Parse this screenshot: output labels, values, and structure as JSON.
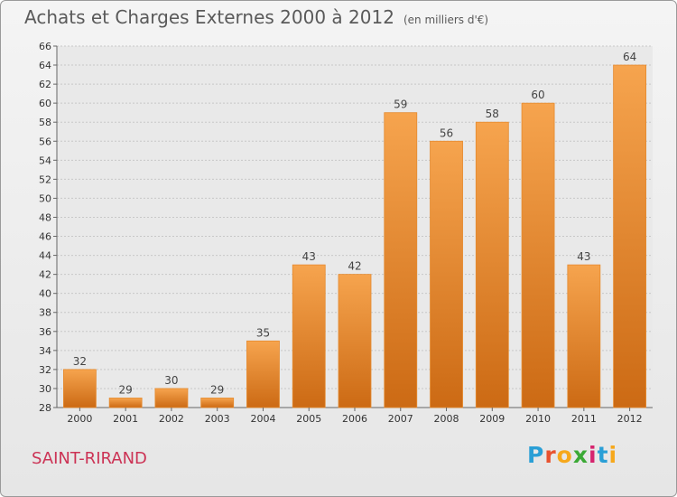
{
  "header": {
    "title": "Achats et Charges Externes 2000 à 2012",
    "unit": "(en milliers d'€)"
  },
  "footer": {
    "commune": "SAINT-RIRAND",
    "logo_letters": [
      "P",
      "r",
      "o",
      "x",
      "i",
      "t",
      "i"
    ],
    "logo_colors": [
      "#2a9fd6",
      "#e8522f",
      "#f6a81c",
      "#3aa935",
      "#d6246e",
      "#2a9fd6",
      "#f6a81c"
    ]
  },
  "colors": {
    "bar_light": "#f6a44e",
    "bar_dark": "#cc6a14",
    "grid": "#c8c8c8"
  },
  "chart_data": {
    "type": "bar",
    "title": "Achats et Charges Externes 2000 à 2012",
    "xlabel": "",
    "ylabel": "",
    "categories": [
      "2000",
      "2001",
      "2002",
      "2003",
      "2004",
      "2005",
      "2006",
      "2007",
      "2008",
      "2009",
      "2010",
      "2011",
      "2012"
    ],
    "values": [
      32,
      29,
      30,
      29,
      35,
      43,
      42,
      59,
      56,
      58,
      60,
      43,
      64
    ],
    "ylim": [
      28,
      66
    ],
    "ytick_step": 2,
    "grid": true,
    "legend": "none"
  }
}
